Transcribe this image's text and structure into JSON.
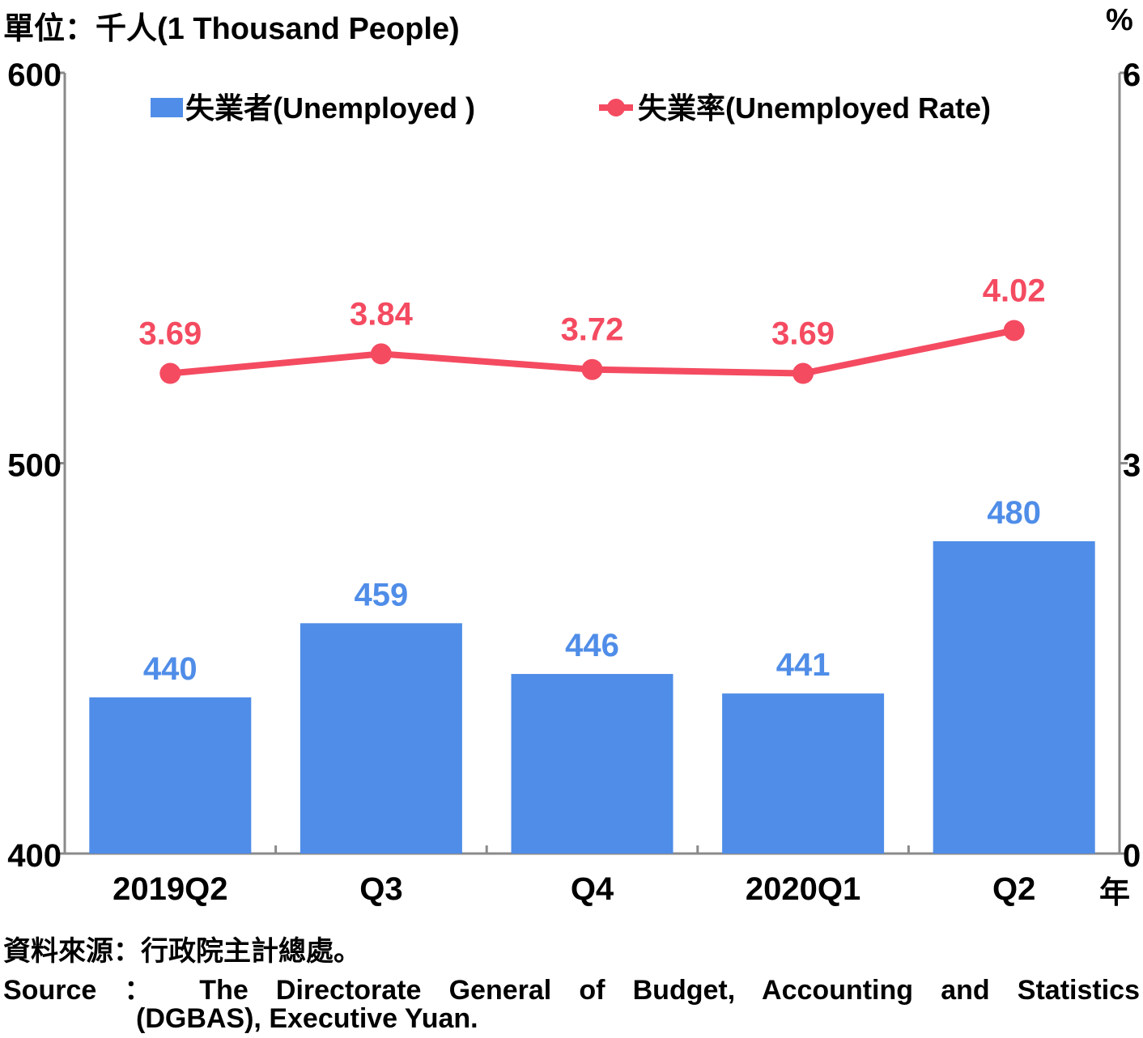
{
  "header": {
    "unit_label": "單位：千人(1 Thousand People)",
    "right_unit_label": "%",
    "x_unit_label": "年"
  },
  "legend": {
    "bar_label": "失業者(Unemployed )",
    "line_label": "失業率(Unemployed Rate)"
  },
  "colors": {
    "bar": "#4f8de8",
    "line": "#f44b61",
    "axis": "#8a8a8a"
  },
  "chart_data": {
    "type": "bar",
    "categories": [
      "2019Q2",
      "Q3",
      "Q4",
      "2020Q1",
      "Q2"
    ],
    "series": [
      {
        "name": "失業者(Unemployed )",
        "type": "bar",
        "axis": "left",
        "values": [
          440,
          459,
          446,
          441,
          480
        ]
      },
      {
        "name": "失業率(Unemployed Rate)",
        "type": "line",
        "axis": "right",
        "values": [
          3.69,
          3.84,
          3.72,
          3.69,
          4.02
        ]
      }
    ],
    "left_axis": {
      "ylim": [
        400,
        600
      ],
      "ticks": [
        "400",
        "500",
        "600"
      ]
    },
    "right_axis": {
      "ylim": [
        0,
        6
      ],
      "ticks": [
        "0",
        "3",
        "6"
      ]
    },
    "legend_position": "top",
    "grid": false
  },
  "source": {
    "zh": "資料來源：行政院主計總處。",
    "en_line1": "Source ： The Directorate General of Budget, Accounting and Statistics",
    "en_line2": "(DGBAS), Executive Yuan."
  }
}
